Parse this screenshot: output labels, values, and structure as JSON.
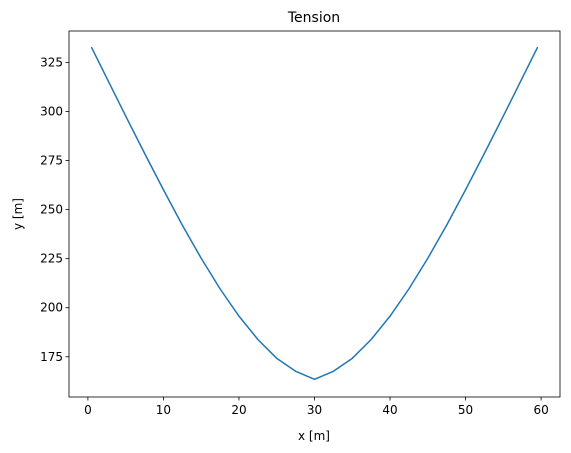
{
  "chart_data": {
    "type": "line",
    "title": "Tension",
    "xlabel": "x [m]",
    "ylabel": "y [m]",
    "xlim": [
      -2.5,
      62.5
    ],
    "ylim": [
      154.5,
      341.0
    ],
    "grid": false,
    "x_ticks": [
      0,
      10,
      20,
      30,
      40,
      50,
      60
    ],
    "y_ticks": [
      175,
      200,
      225,
      250,
      275,
      300,
      325
    ],
    "colors": {
      "line": "#1f77b4",
      "axes": "#000000",
      "background": "#ffffff"
    },
    "series": [
      {
        "x": [
          0.5,
          2.5,
          5,
          7.5,
          10,
          12.5,
          15,
          17.5,
          20,
          22.5,
          25,
          27.5,
          30,
          32.5,
          35,
          37.5,
          40,
          42.5,
          45,
          47.5,
          50,
          52.5,
          55,
          57.5,
          59.5
        ],
        "values": [
          332.5,
          317.0,
          297.7,
          278.7,
          260.1,
          242.1,
          225.2,
          209.6,
          195.7,
          183.8,
          174.2,
          167.6,
          163.5,
          167.6,
          174.2,
          183.8,
          195.7,
          209.6,
          225.2,
          242.1,
          260.1,
          278.7,
          297.7,
          317.0,
          332.5
        ]
      }
    ]
  }
}
